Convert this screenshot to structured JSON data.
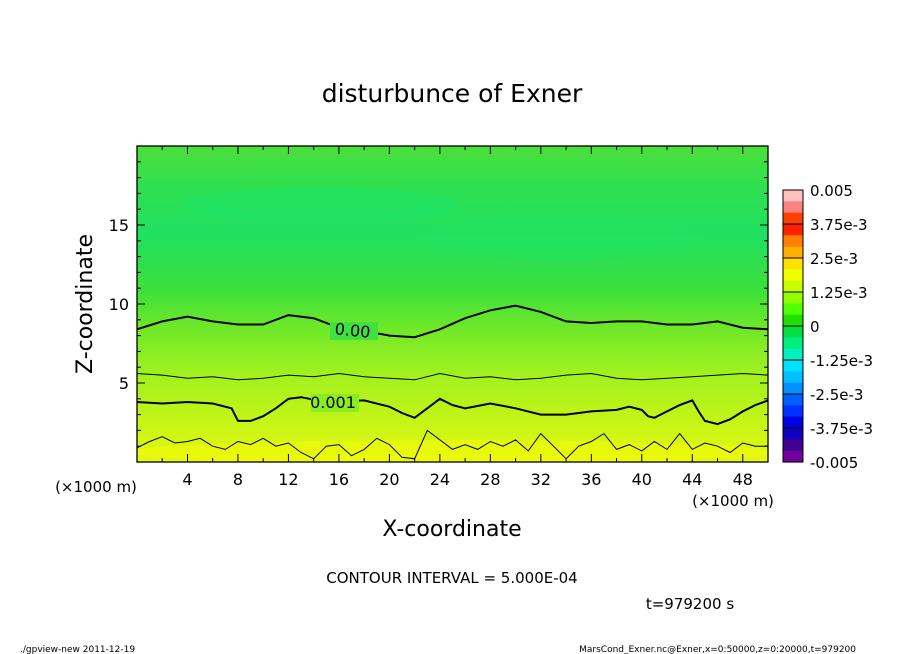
{
  "chart_data": {
    "type": "heatmap",
    "title": "disturbunce of Exner",
    "xlabel": "X-coordinate",
    "ylabel": "Z-coordinate",
    "x_unit_left": "(×1000 m)",
    "x_unit_right": "(×1000 m)",
    "xlim": [
      0,
      50
    ],
    "ylim": [
      0,
      20
    ],
    "x_ticks": [
      4,
      8,
      12,
      16,
      20,
      24,
      28,
      32,
      36,
      40,
      44,
      48
    ],
    "y_ticks": [
      5,
      10,
      15
    ],
    "colorbar": {
      "labels": [
        "0.005",
        "3.75e-3",
        "2.5e-3",
        "1.25e-3",
        "0",
        "-1.25e-3",
        "-2.5e-3",
        "-3.75e-3",
        "-0.005"
      ],
      "values": [
        0.005,
        0.00375,
        0.0025,
        0.00125,
        0,
        -0.00125,
        -0.0025,
        -0.00375,
        -0.005
      ],
      "colors": [
        "#ffc0c0",
        "#ff8080",
        "#ff4000",
        "#ff2000",
        "#ff8000",
        "#ffb000",
        "#ffe000",
        "#f0ff00",
        "#c8ff00",
        "#90ff00",
        "#50ff00",
        "#20e000",
        "#00e040",
        "#00f080",
        "#00f0c0",
        "#00e0ff",
        "#00c0ff",
        "#0090ff",
        "#0060ff",
        "#0030ff",
        "#0000e0",
        "#1000c0",
        "#400090",
        "#7000a0"
      ]
    },
    "contours": [
      {
        "label": "0.00",
        "points": [
          [
            0,
            8.4
          ],
          [
            2,
            8.9
          ],
          [
            4,
            9.2
          ],
          [
            6,
            8.9
          ],
          [
            8,
            8.7
          ],
          [
            10,
            8.7
          ],
          [
            12,
            9.3
          ],
          [
            14,
            9.1
          ],
          [
            16,
            8.5
          ],
          [
            18,
            8.3
          ],
          [
            20,
            8.0
          ],
          [
            22,
            7.9
          ],
          [
            24,
            8.4
          ],
          [
            26,
            9.1
          ],
          [
            28,
            9.6
          ],
          [
            30,
            9.9
          ],
          [
            32,
            9.5
          ],
          [
            34,
            8.9
          ],
          [
            36,
            8.8
          ],
          [
            38,
            8.9
          ],
          [
            40,
            8.9
          ],
          [
            42,
            8.7
          ],
          [
            44,
            8.7
          ],
          [
            46,
            8.9
          ],
          [
            48,
            8.5
          ],
          [
            50,
            8.4
          ]
        ]
      },
      {
        "label": "",
        "points": [
          [
            0,
            5.6
          ],
          [
            2,
            5.5
          ],
          [
            4,
            5.3
          ],
          [
            6,
            5.4
          ],
          [
            8,
            5.2
          ],
          [
            10,
            5.3
          ],
          [
            12,
            5.5
          ],
          [
            14,
            5.4
          ],
          [
            16,
            5.6
          ],
          [
            18,
            5.4
          ],
          [
            20,
            5.3
          ],
          [
            22,
            5.2
          ],
          [
            24,
            5.6
          ],
          [
            26,
            5.3
          ],
          [
            28,
            5.4
          ],
          [
            30,
            5.2
          ],
          [
            32,
            5.3
          ],
          [
            34,
            5.5
          ],
          [
            36,
            5.6
          ],
          [
            38,
            5.3
          ],
          [
            40,
            5.2
          ],
          [
            42,
            5.3
          ],
          [
            44,
            5.4
          ],
          [
            46,
            5.5
          ],
          [
            48,
            5.6
          ],
          [
            50,
            5.5
          ]
        ]
      },
      {
        "label": "0.001",
        "points": [
          [
            0,
            3.8
          ],
          [
            2,
            3.7
          ],
          [
            4,
            3.8
          ],
          [
            6,
            3.7
          ],
          [
            7.5,
            3.4
          ],
          [
            8,
            2.6
          ],
          [
            9,
            2.6
          ],
          [
            10,
            2.9
          ],
          [
            11,
            3.4
          ],
          [
            12,
            4.0
          ],
          [
            13,
            4.1
          ],
          [
            15,
            3.8
          ],
          [
            18,
            3.9
          ],
          [
            20,
            3.5
          ],
          [
            21,
            3.1
          ],
          [
            22,
            2.8
          ],
          [
            23,
            3.4
          ],
          [
            24,
            4.0
          ],
          [
            25,
            3.6
          ],
          [
            26,
            3.4
          ],
          [
            28,
            3.7
          ],
          [
            30,
            3.4
          ],
          [
            32,
            3.0
          ],
          [
            34,
            3.0
          ],
          [
            36,
            3.2
          ],
          [
            38,
            3.3
          ],
          [
            39,
            3.5
          ],
          [
            40,
            3.3
          ],
          [
            40.5,
            2.9
          ],
          [
            41,
            2.8
          ],
          [
            42,
            3.2
          ],
          [
            43,
            3.6
          ],
          [
            44,
            3.9
          ],
          [
            44.5,
            3.2
          ],
          [
            45,
            2.6
          ],
          [
            46,
            2.4
          ],
          [
            47,
            2.7
          ],
          [
            48,
            3.2
          ],
          [
            49,
            3.6
          ],
          [
            50,
            3.9
          ]
        ]
      },
      {
        "label": "",
        "points": [
          [
            0,
            0.9
          ],
          [
            1,
            1.3
          ],
          [
            2,
            1.6
          ],
          [
            3,
            1.2
          ],
          [
            4,
            1.3
          ],
          [
            5,
            1.5
          ],
          [
            6,
            1.0
          ],
          [
            7,
            0.8
          ],
          [
            8,
            1.3
          ],
          [
            9,
            1.1
          ],
          [
            10,
            1.5
          ],
          [
            11,
            1.0
          ],
          [
            12,
            1.2
          ],
          [
            13,
            0.6
          ],
          [
            14,
            0.2
          ],
          [
            15,
            1.0
          ],
          [
            16,
            1.1
          ],
          [
            17,
            0.4
          ],
          [
            18,
            0.8
          ],
          [
            19,
            1.5
          ],
          [
            20,
            1.1
          ],
          [
            21,
            0.3
          ],
          [
            22,
            0.2
          ],
          [
            23,
            2.0
          ],
          [
            24,
            1.4
          ],
          [
            25,
            0.8
          ],
          [
            26,
            1.1
          ],
          [
            27,
            0.8
          ],
          [
            28,
            1.3
          ],
          [
            29,
            1.0
          ],
          [
            30,
            1.4
          ],
          [
            31,
            0.7
          ],
          [
            32,
            1.8
          ],
          [
            33,
            1.0
          ],
          [
            34,
            0.2
          ],
          [
            35,
            1.0
          ],
          [
            36,
            1.3
          ],
          [
            37,
            1.8
          ],
          [
            38,
            0.8
          ],
          [
            39,
            1.1
          ],
          [
            40,
            0.7
          ],
          [
            41,
            1.3
          ],
          [
            42,
            0.8
          ],
          [
            43,
            1.8
          ],
          [
            44,
            0.8
          ],
          [
            45,
            1.2
          ],
          [
            46,
            1.0
          ],
          [
            47,
            0.6
          ],
          [
            48,
            1.2
          ],
          [
            49,
            1.0
          ],
          [
            50,
            1.0
          ]
        ]
      }
    ]
  },
  "footer": {
    "contour_interval": "CONTOUR INTERVAL = 5.000E-04",
    "time": "t=979200 s",
    "program": "./gpview-new   2011-12-19",
    "source": "MarsCond_Exner.nc@Exner,x=0:50000,z=0:20000,t=979200"
  }
}
